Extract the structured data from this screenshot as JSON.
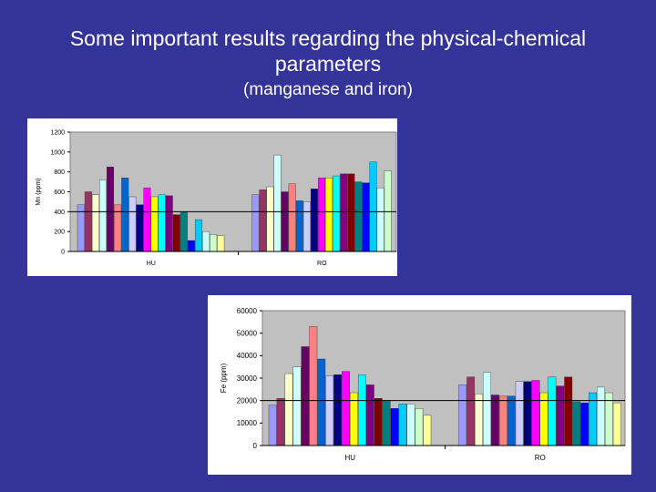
{
  "slide": {
    "title_line1": "Some important results regarding the physical-chemical",
    "title_line2": "parameters",
    "subtitle": "(manganese and iron)"
  },
  "colors": {
    "background": "#333399",
    "plot_area": "#c0c0c0",
    "threshold_line": "#000000",
    "bar_palette": [
      "#9999ff",
      "#993366",
      "#ffffcc",
      "#ccffff",
      "#660066",
      "#ff8080",
      "#0066cc",
      "#ccccff",
      "#000080",
      "#ff00ff",
      "#ffff00",
      "#00ffff",
      "#800080",
      "#800000",
      "#008080",
      "#0000ff",
      "#00ccff",
      "#ccffff",
      "#ccffcc",
      "#ffff99",
      "#99ccff",
      "#ff99cc"
    ]
  },
  "chart_data": [
    {
      "type": "bar",
      "ylabel": "Mn (ppm)",
      "categories": [
        "HU",
        "RO"
      ],
      "ylim": [
        0,
        1200
      ],
      "yticks": [
        0,
        200,
        400,
        600,
        800,
        1000,
        1200
      ],
      "threshold": 400,
      "grid": false,
      "legend": "none",
      "groups": [
        {
          "category": "HU",
          "values": [
            470,
            600,
            570,
            720,
            850,
            470,
            740,
            550,
            470,
            640,
            550,
            570,
            560,
            370,
            400,
            110,
            320,
            200,
            170,
            160
          ]
        },
        {
          "category": "RO",
          "values": [
            570,
            620,
            650,
            970,
            600,
            680,
            510,
            500,
            630,
            740,
            740,
            760,
            780,
            780,
            700,
            690,
            900,
            640,
            810
          ]
        }
      ]
    },
    {
      "type": "bar",
      "ylabel": "Fe (ppm)",
      "categories": [
        "HU",
        "RO"
      ],
      "ylim": [
        0,
        60000
      ],
      "yticks": [
        0,
        10000,
        20000,
        30000,
        40000,
        50000,
        60000
      ],
      "threshold": 20000,
      "grid": false,
      "legend": "none",
      "groups": [
        {
          "category": "HU",
          "values": [
            18000,
            21000,
            32000,
            35000,
            44000,
            53000,
            38500,
            31000,
            31500,
            33000,
            23500,
            31500,
            27000,
            21000,
            20000,
            16500,
            18500,
            18500,
            16500,
            13500
          ]
        },
        {
          "category": "RO",
          "values": [
            27000,
            30500,
            23000,
            32500,
            22500,
            22000,
            22000,
            28500,
            28500,
            29000,
            23500,
            30500,
            26500,
            30500,
            19500,
            19000,
            23500,
            26000,
            23500,
            19000
          ]
        }
      ]
    }
  ]
}
